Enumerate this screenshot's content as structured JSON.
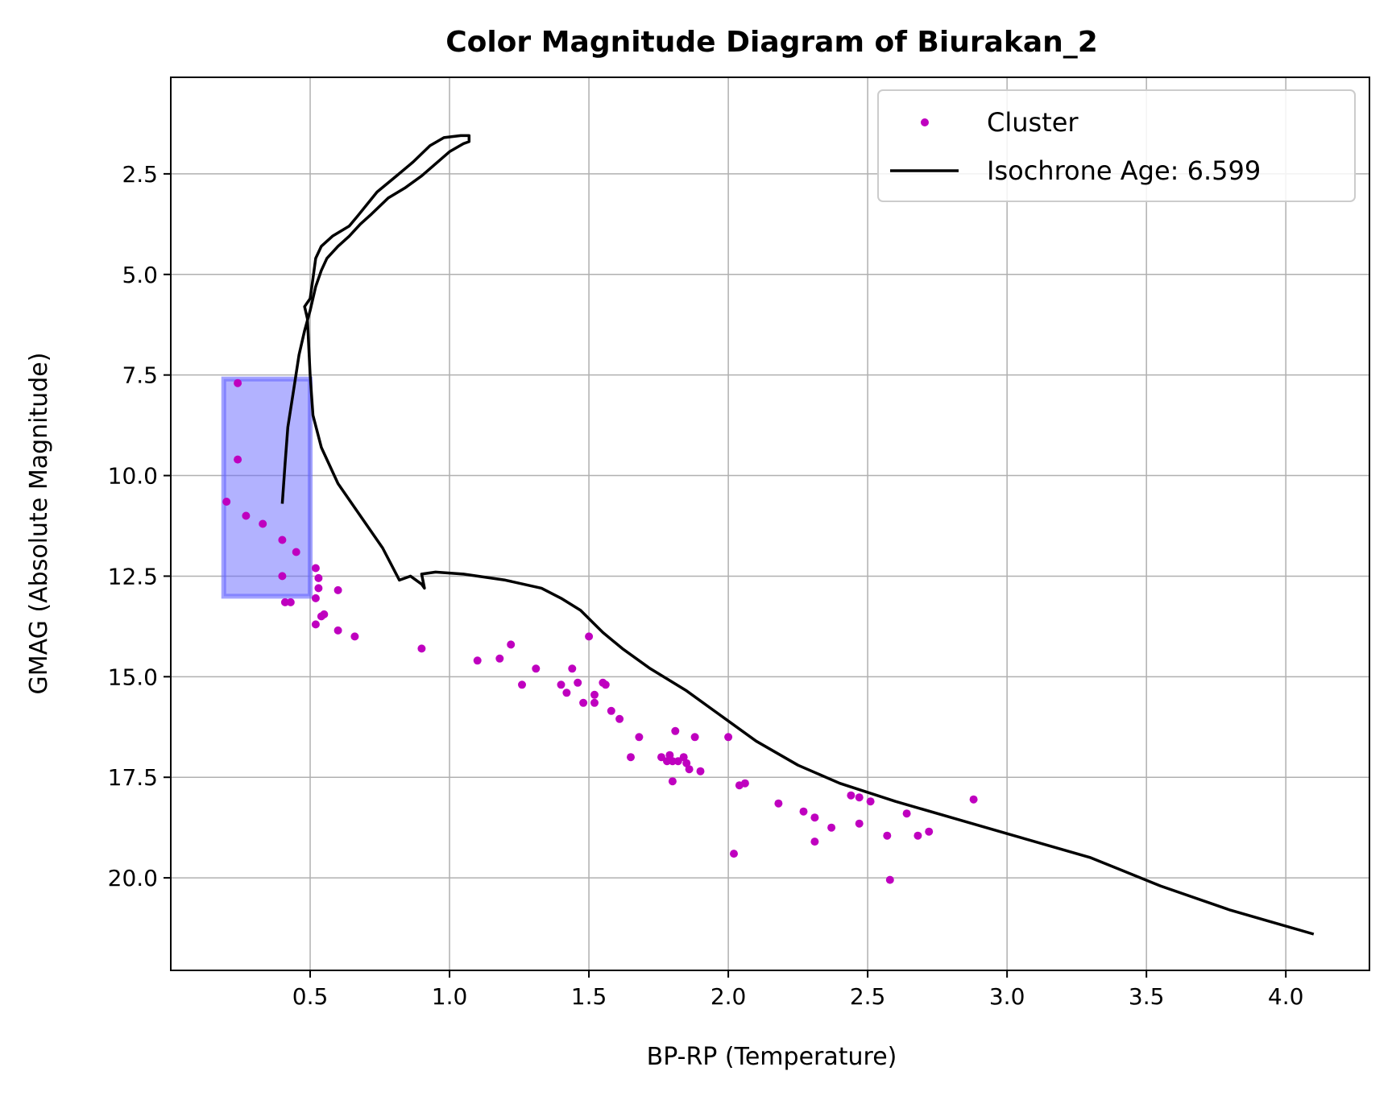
{
  "chart_data": {
    "type": "scatter",
    "title": "Color Magnitude Diagram of Biurakan_2",
    "xlabel": "BP-RP (Temperature)",
    "ylabel": "GMAG (Absolute Magnitude)",
    "xlim": [
      -0.0,
      4.3
    ],
    "ylim": [
      22.3,
      0.1
    ],
    "y_inverted": true,
    "grid": true,
    "x_ticks": [
      0.5,
      1.0,
      1.5,
      2.0,
      2.5,
      3.0,
      3.5,
      4.0
    ],
    "x_tick_labels": [
      "0.5",
      "1.0",
      "1.5",
      "2.0",
      "2.5",
      "3.0",
      "3.5",
      "4.0"
    ],
    "y_ticks": [
      2.5,
      5.0,
      7.5,
      10.0,
      12.5,
      15.0,
      17.5,
      20.0
    ],
    "y_tick_labels": [
      "2.5",
      "5.0",
      "7.5",
      "10.0",
      "12.5",
      "15.0",
      "17.5",
      "20.0"
    ],
    "legend": {
      "placement": "top-right",
      "entries": [
        {
          "label": "Cluster",
          "marker": "dot",
          "color": "#bf00bf"
        },
        {
          "label": "Isochrone Age: 6.599",
          "marker": "line",
          "color": "#000000"
        }
      ]
    },
    "highlight_box": {
      "x": [
        0.19,
        0.5
      ],
      "y": [
        7.6,
        13.0
      ],
      "color": "#6666ff"
    },
    "series": [
      {
        "name": "Cluster",
        "kind": "scatter",
        "color": "#bf00bf",
        "points": [
          [
            0.24,
            7.7
          ],
          [
            0.24,
            9.6
          ],
          [
            0.2,
            10.65
          ],
          [
            0.27,
            11.0
          ],
          [
            0.33,
            11.2
          ],
          [
            0.4,
            11.6
          ],
          [
            0.45,
            11.9
          ],
          [
            0.4,
            12.5
          ],
          [
            0.41,
            13.15
          ],
          [
            0.43,
            13.15
          ],
          [
            0.52,
            12.3
          ],
          [
            0.53,
            12.55
          ],
          [
            0.53,
            12.8
          ],
          [
            0.52,
            13.05
          ],
          [
            0.6,
            12.85
          ],
          [
            0.54,
            13.5
          ],
          [
            0.55,
            13.45
          ],
          [
            0.52,
            13.7
          ],
          [
            0.6,
            13.85
          ],
          [
            0.66,
            14.0
          ],
          [
            0.9,
            14.3
          ],
          [
            1.1,
            14.6
          ],
          [
            1.18,
            14.55
          ],
          [
            1.22,
            14.2
          ],
          [
            1.26,
            15.2
          ],
          [
            1.31,
            14.8
          ],
          [
            1.4,
            15.2
          ],
          [
            1.42,
            15.4
          ],
          [
            1.44,
            14.8
          ],
          [
            1.46,
            15.15
          ],
          [
            1.48,
            15.65
          ],
          [
            1.5,
            14.0
          ],
          [
            1.52,
            15.45
          ],
          [
            1.52,
            15.65
          ],
          [
            1.55,
            15.15
          ],
          [
            1.56,
            15.2
          ],
          [
            1.58,
            15.85
          ],
          [
            1.61,
            16.05
          ],
          [
            1.65,
            17.0
          ],
          [
            1.68,
            16.5
          ],
          [
            1.76,
            17.0
          ],
          [
            1.78,
            17.1
          ],
          [
            1.79,
            16.95
          ],
          [
            1.8,
            17.1
          ],
          [
            1.81,
            16.35
          ],
          [
            1.82,
            17.1
          ],
          [
            1.84,
            17.0
          ],
          [
            1.85,
            17.15
          ],
          [
            1.86,
            17.3
          ],
          [
            1.88,
            16.5
          ],
          [
            1.9,
            17.35
          ],
          [
            1.8,
            17.6
          ],
          [
            2.0,
            16.5
          ],
          [
            2.02,
            19.4
          ],
          [
            2.04,
            17.7
          ],
          [
            2.06,
            17.65
          ],
          [
            2.18,
            18.15
          ],
          [
            2.27,
            18.35
          ],
          [
            2.31,
            18.5
          ],
          [
            2.31,
            19.1
          ],
          [
            2.37,
            18.75
          ],
          [
            2.44,
            17.95
          ],
          [
            2.47,
            18.0
          ],
          [
            2.47,
            18.65
          ],
          [
            2.51,
            18.1
          ],
          [
            2.57,
            18.95
          ],
          [
            2.58,
            20.05
          ],
          [
            2.64,
            18.4
          ],
          [
            2.68,
            18.95
          ],
          [
            2.72,
            18.85
          ],
          [
            2.88,
            18.05
          ]
        ]
      },
      {
        "name": "Isochrone Age: 6.599",
        "kind": "line",
        "color": "#000000",
        "points": [
          [
            0.4,
            10.7
          ],
          [
            0.41,
            9.7
          ],
          [
            0.42,
            8.8
          ],
          [
            0.44,
            7.9
          ],
          [
            0.46,
            7.0
          ],
          [
            0.48,
            6.4
          ],
          [
            0.5,
            5.9
          ],
          [
            0.52,
            5.3
          ],
          [
            0.54,
            4.9
          ],
          [
            0.56,
            4.6
          ],
          [
            0.6,
            4.3
          ],
          [
            0.64,
            4.05
          ],
          [
            0.68,
            3.75
          ],
          [
            0.72,
            3.5
          ],
          [
            0.78,
            3.1
          ],
          [
            0.84,
            2.85
          ],
          [
            0.9,
            2.55
          ],
          [
            1.0,
            1.95
          ],
          [
            1.05,
            1.75
          ],
          [
            1.07,
            1.7
          ],
          [
            1.07,
            1.55
          ],
          [
            1.04,
            1.55
          ],
          [
            0.98,
            1.6
          ],
          [
            0.93,
            1.8
          ],
          [
            0.87,
            2.2
          ],
          [
            0.81,
            2.55
          ],
          [
            0.74,
            2.95
          ],
          [
            0.67,
            3.55
          ],
          [
            0.64,
            3.8
          ],
          [
            0.58,
            4.05
          ],
          [
            0.54,
            4.3
          ],
          [
            0.52,
            4.6
          ],
          [
            0.51,
            5.1
          ],
          [
            0.5,
            5.6
          ],
          [
            0.48,
            5.8
          ],
          [
            0.49,
            6.1
          ],
          [
            0.5,
            7.5
          ],
          [
            0.51,
            8.5
          ],
          [
            0.54,
            9.3
          ],
          [
            0.6,
            10.2
          ],
          [
            0.68,
            11.0
          ],
          [
            0.76,
            11.8
          ],
          [
            0.82,
            12.6
          ],
          [
            0.86,
            12.5
          ],
          [
            0.9,
            12.7
          ],
          [
            0.91,
            12.8
          ],
          [
            0.9,
            12.45
          ],
          [
            0.95,
            12.4
          ],
          [
            1.05,
            12.45
          ],
          [
            1.2,
            12.6
          ],
          [
            1.33,
            12.8
          ],
          [
            1.4,
            13.05
          ],
          [
            1.47,
            13.35
          ],
          [
            1.55,
            13.9
          ],
          [
            1.62,
            14.3
          ],
          [
            1.72,
            14.8
          ],
          [
            1.85,
            15.35
          ],
          [
            2.0,
            16.1
          ],
          [
            2.1,
            16.6
          ],
          [
            2.25,
            17.2
          ],
          [
            2.4,
            17.65
          ],
          [
            2.6,
            18.1
          ],
          [
            2.8,
            18.5
          ],
          [
            3.0,
            18.9
          ],
          [
            3.3,
            19.5
          ],
          [
            3.55,
            20.2
          ],
          [
            3.8,
            20.8
          ],
          [
            4.1,
            21.4
          ]
        ]
      }
    ]
  }
}
